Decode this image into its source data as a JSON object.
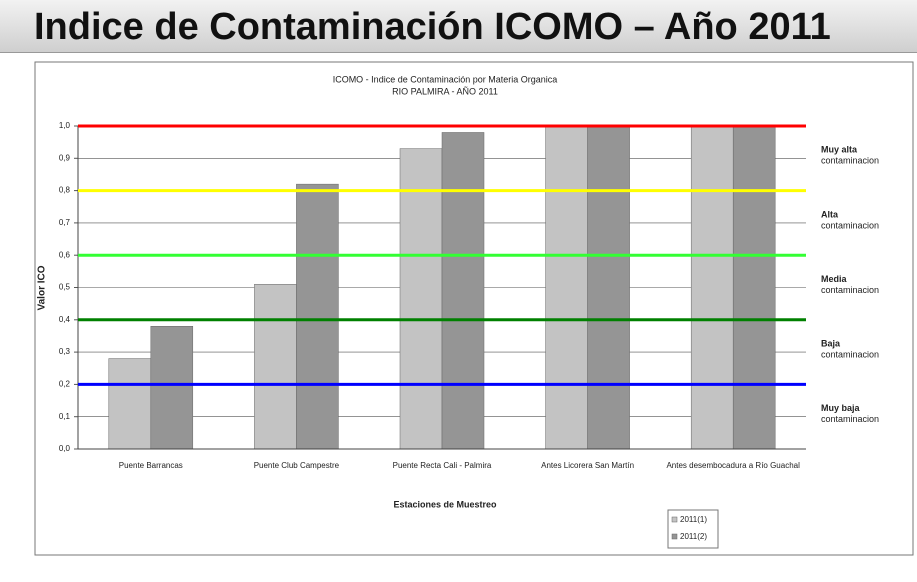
{
  "heading": "Indice de Contaminación ICOMO – Año 2011",
  "chart_data": {
    "type": "bar",
    "title": "ICOMO - Indice de Contaminación por Materia Organica",
    "subtitle": "RIO PALMIRA - AÑO 2011",
    "x_label": "Estaciones de Muestreo",
    "y_label": "Valor ICO",
    "categories": [
      "Puente Barrancas",
      "Puente Club Campestre",
      "Puente Recta Cali - Palmira",
      "Antes Licorera San Martín",
      "Antes desembocadura a Río Guachal"
    ],
    "series": [
      {
        "name": "2011(1)",
        "color": "#c3c3c3",
        "values": [
          0.28,
          0.51,
          0.93,
          1.0,
          1.0
        ]
      },
      {
        "name": "2011(2)",
        "color": "#959595",
        "values": [
          0.38,
          0.82,
          0.98,
          1.0,
          1.0
        ]
      }
    ],
    "ylim": [
      0,
      1
    ],
    "yticks": [
      {
        "value": 0,
        "label": "0,0"
      },
      {
        "value": 0.1,
        "label": "0,1"
      },
      {
        "value": 0.2,
        "label": "0,2"
      },
      {
        "value": 0.3,
        "label": "0,3"
      },
      {
        "value": 0.4,
        "label": "0,4"
      },
      {
        "value": 0.5,
        "label": "0,5"
      },
      {
        "value": 0.6,
        "label": "0,6"
      },
      {
        "value": 0.7,
        "label": "0,7"
      },
      {
        "value": 0.8,
        "label": "0,8"
      },
      {
        "value": 0.9,
        "label": "0,9"
      },
      {
        "value": 1,
        "label": "1,0"
      }
    ],
    "grid": true,
    "thresholds": [
      {
        "value": 1,
        "color": "#ff0000"
      },
      {
        "value": 0.8,
        "color": "#ffff00"
      },
      {
        "value": 0.6,
        "color": "#33ff33"
      },
      {
        "value": 0.4,
        "color": "#008000"
      },
      {
        "value": 0.2,
        "color": "#0000ff"
      }
    ],
    "zones": [
      {
        "range": [
          0.8,
          1
        ],
        "label": [
          "Muy alta",
          "contaminacion"
        ]
      },
      {
        "range": [
          0.6,
          0.8
        ],
        "label": [
          "Alta",
          "contaminacion"
        ]
      },
      {
        "range": [
          0.4,
          0.6
        ],
        "label": [
          "Media",
          "contaminacion"
        ]
      },
      {
        "range": [
          0.2,
          0.4
        ],
        "label": [
          "Baja",
          "contaminacion"
        ]
      },
      {
        "range": [
          0,
          0.2
        ],
        "label": [
          "Muy baja",
          "contaminacion"
        ]
      }
    ],
    "legend": "bottom-right"
  }
}
